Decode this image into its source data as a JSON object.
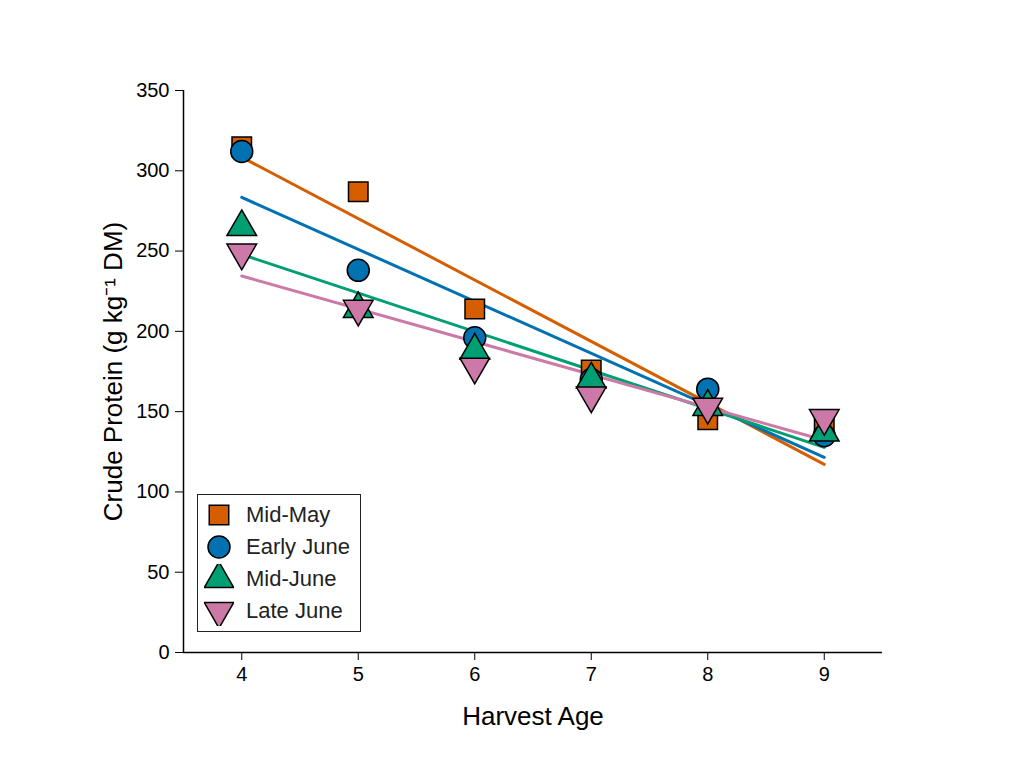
{
  "chart_data": {
    "type": "scatter",
    "x_label": "Harvest Age",
    "y_label": "Crude Protein (g kg⁻¹ DM)",
    "xlim": [
      3.5,
      9.5
    ],
    "xticks": [
      4,
      5,
      6,
      7,
      8,
      9
    ],
    "ylim": [
      0,
      350
    ],
    "yticks": [
      0,
      50,
      100,
      150,
      200,
      250,
      300,
      350
    ],
    "legend": "lower left",
    "x": [
      4,
      5,
      6,
      7,
      8,
      9
    ],
    "series": [
      {
        "name": "Mid-May",
        "color": "#d55e00",
        "marker": "square",
        "line_style": "solid",
        "values": [
          315,
          287,
          214,
          176,
          145,
          140
        ]
      },
      {
        "name": "Early June",
        "color": "#0072b2",
        "marker": "circle",
        "line_style": "solid",
        "values": [
          312,
          238,
          196,
          170,
          164,
          135
        ]
      },
      {
        "name": "Mid-June",
        "color": "#009e73",
        "marker": "triangle",
        "line_style": "solid",
        "values": [
          265,
          214,
          188,
          170,
          153,
          137
        ]
      },
      {
        "name": "Late June",
        "color": "#cc79a7",
        "marker": "triangle-down",
        "line_style": "solid",
        "values": [
          249,
          214,
          178,
          160,
          153,
          146
        ]
      }
    ]
  }
}
